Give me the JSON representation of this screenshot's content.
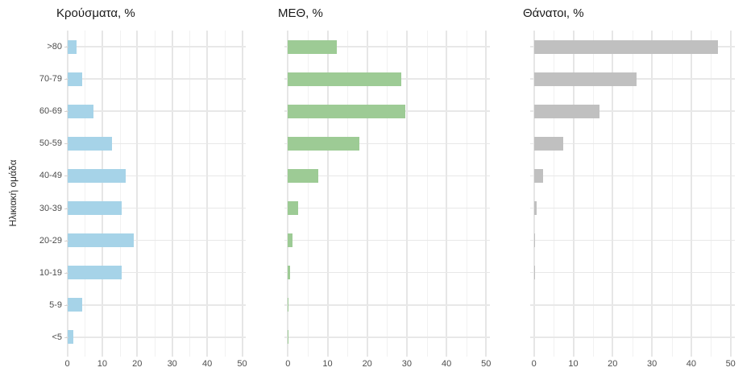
{
  "figure": {
    "y_axis_title": "Ηλικιακή ομάδα",
    "background": "#ffffff"
  },
  "chart_data": [
    {
      "type": "bar",
      "orientation": "horizontal",
      "title": "Κρούσματα, %",
      "bar_color": "#a6d3e8",
      "categories": [
        ">80",
        "70-79",
        "60-69",
        "50-59",
        "40-49",
        "30-39",
        "20-29",
        "10-19",
        "5-9",
        "<5"
      ],
      "values": [
        2.7,
        4.2,
        7.4,
        12.9,
        16.8,
        15.6,
        18.9,
        15.6,
        4.2,
        1.8
      ],
      "xlim": [
        0,
        50
      ],
      "x_major_ticks": [
        0,
        10,
        20,
        30,
        40,
        50
      ],
      "x_minor_ticks": [
        5,
        15,
        25,
        35,
        45
      ],
      "ylabel": "Ηλικιακή ομάδα",
      "grid": true,
      "legend": "none"
    },
    {
      "type": "bar",
      "orientation": "horizontal",
      "title": "ΜΕΘ, %",
      "bar_color": "#9dcb95",
      "categories": [
        ">80",
        "70-79",
        "60-69",
        "50-59",
        "40-49",
        "30-39",
        "20-29",
        "10-19",
        "5-9",
        "<5"
      ],
      "values": [
        12.3,
        28.5,
        29.7,
        18.0,
        7.7,
        2.5,
        1.1,
        0.5,
        0.2,
        0.2
      ],
      "xlim": [
        0,
        50
      ],
      "x_major_ticks": [
        0,
        10,
        20,
        30,
        40,
        50
      ],
      "x_minor_ticks": [
        5,
        15,
        25,
        35,
        45
      ],
      "ylabel": "Ηλικιακή ομάδα",
      "grid": true,
      "legend": "none"
    },
    {
      "type": "bar",
      "orientation": "horizontal",
      "title": "Θάνατοι, %",
      "bar_color": "#c0c0c0",
      "categories": [
        ">80",
        "70-79",
        "60-69",
        "50-59",
        "40-49",
        "30-39",
        "20-29",
        "10-19",
        "5-9",
        "<5"
      ],
      "values": [
        46.7,
        26.1,
        16.7,
        7.4,
        2.3,
        0.6,
        0.1,
        0.1,
        0,
        0
      ],
      "xlim": [
        0,
        50
      ],
      "x_major_ticks": [
        0,
        10,
        20,
        30,
        40,
        50
      ],
      "x_minor_ticks": [
        5,
        15,
        25,
        35,
        45
      ],
      "ylabel": "Ηλικιακή ομάδα",
      "grid": true,
      "legend": "none"
    }
  ]
}
